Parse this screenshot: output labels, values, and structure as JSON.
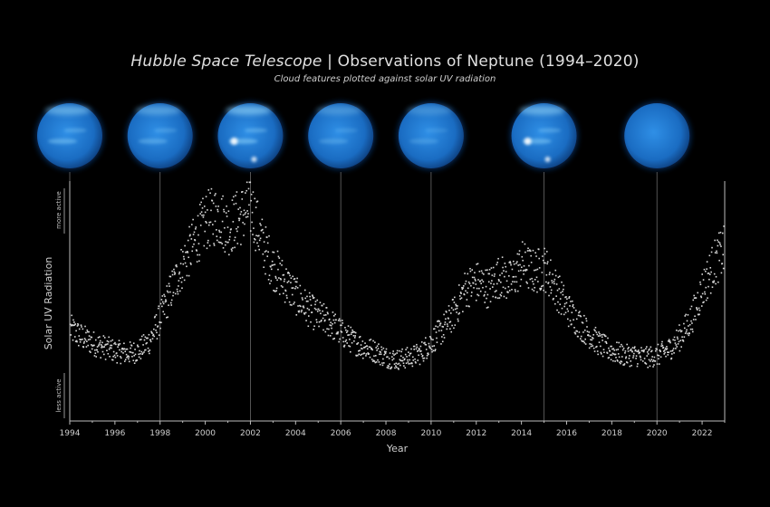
{
  "header": {
    "title_italic": "Hubble Space Telescope",
    "title_sep": " | ",
    "title_rest": "Observations of Neptune (1994–2020)",
    "subtitle": "Cloud features plotted against solar UV radiation"
  },
  "colors": {
    "background": "#000000",
    "points": "#d8d8d8",
    "axis": "#bdbdbd",
    "planet": "#1f7ed6",
    "planet_glow": "#9fe0ff"
  },
  "chart_data": {
    "type": "scatter",
    "title": "",
    "xlabel": "Year",
    "ylabel": "Solar UV Radiation",
    "y_top_label": "more active",
    "y_bottom_label": "less active",
    "xlim": [
      1994,
      2023
    ],
    "ylim": [
      0,
      1
    ],
    "y_ticks_shown": false,
    "xticks": [
      1994,
      1996,
      1998,
      2000,
      2002,
      2004,
      2006,
      2008,
      2010,
      2012,
      2014,
      2016,
      2018,
      2020,
      2022
    ],
    "xtick_labels": [
      "1994",
      "1996",
      "1998",
      "2000",
      "2002",
      "2004",
      "2006",
      "2008",
      "2010",
      "2012",
      "2014",
      "2016",
      "2018",
      "2020",
      "2022"
    ],
    "grid": false,
    "observation_years": [
      1994,
      1998,
      2002,
      2006,
      2010,
      2015,
      2020
    ],
    "neptune_cloud_brightness": [
      0.55,
      0.45,
      0.65,
      0.35,
      0.3,
      0.6,
      0.05
    ],
    "series": [
      {
        "x": [
          1994.0,
          1994.5,
          1995.0,
          1995.5,
          1996.0,
          1996.5,
          1997.0,
          1997.5,
          1998.0,
          1998.5,
          1999.0,
          1999.5,
          2000.0,
          2000.5,
          2001.0,
          2001.5,
          2002.0,
          2002.5,
          2003.0,
          2003.5,
          2004.0,
          2004.5,
          2005.0,
          2005.5,
          2006.0,
          2006.5,
          2007.0,
          2007.5,
          2008.0,
          2008.5,
          2009.0,
          2009.5,
          2010.0,
          2010.5,
          2011.0,
          2011.5,
          2012.0,
          2012.5,
          2013.0,
          2013.5,
          2014.0,
          2014.5,
          2015.0,
          2015.5,
          2016.0,
          2016.5,
          2017.0,
          2017.5,
          2018.0,
          2018.5,
          2019.0,
          2019.5,
          2020.0,
          2020.5,
          2021.0,
          2021.5,
          2022.0,
          2022.5,
          2022.9
        ],
        "y": [
          0.3,
          0.26,
          0.23,
          0.21,
          0.19,
          0.18,
          0.19,
          0.24,
          0.36,
          0.5,
          0.62,
          0.73,
          0.83,
          0.86,
          0.8,
          0.85,
          0.9,
          0.72,
          0.6,
          0.53,
          0.46,
          0.4,
          0.36,
          0.33,
          0.28,
          0.24,
          0.21,
          0.19,
          0.16,
          0.15,
          0.16,
          0.18,
          0.24,
          0.3,
          0.38,
          0.5,
          0.53,
          0.5,
          0.56,
          0.53,
          0.62,
          0.58,
          0.6,
          0.5,
          0.4,
          0.33,
          0.27,
          0.22,
          0.19,
          0.17,
          0.17,
          0.16,
          0.17,
          0.2,
          0.26,
          0.35,
          0.5,
          0.62,
          0.68
        ]
      }
    ]
  }
}
